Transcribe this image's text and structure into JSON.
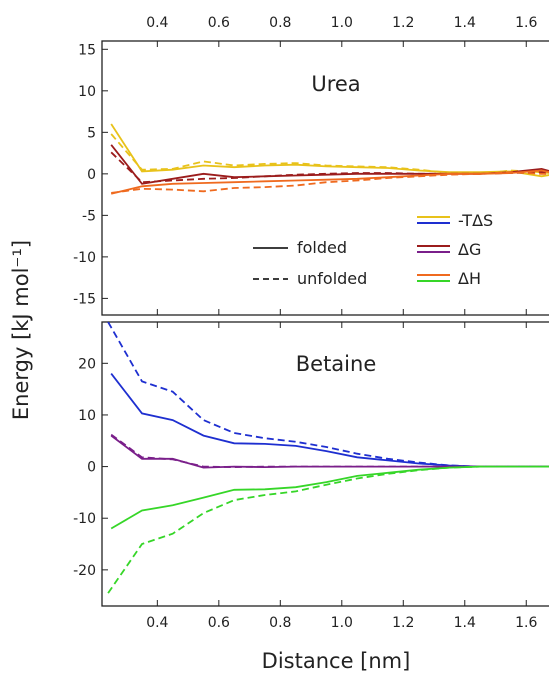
{
  "figure": {
    "xlabel": "Distance [nm]",
    "ylabel": "Energy [kJ mol⁻¹]"
  },
  "colors": {
    "neg_T_delta_S": "#e8c21a",
    "delta_G_urea": "#9b1c1c",
    "delta_H_urea": "#ef6a1f",
    "neg_T_delta_S_betaine": "#1e2fd0",
    "delta_G_betaine": "#7a1f8a",
    "delta_H_betaine": "#36d628"
  },
  "legend": {
    "style_entries": [
      {
        "label": "folded",
        "dash": "solid"
      },
      {
        "label": "unfolded",
        "dash": "dashed"
      }
    ],
    "color_entries": [
      {
        "label": "-TΔS",
        "color": "#e8c21a",
        "line2": "#1e2fd0"
      },
      {
        "label": "ΔG",
        "color": "#9b1c1c",
        "line2": "#7a1f8a"
      },
      {
        "label": "ΔH",
        "color": "#ef6a1f",
        "line2": "#36d628"
      }
    ]
  },
  "chart_data": [
    {
      "type": "line",
      "panel_label": "Urea",
      "xlim": [
        0.22,
        1.7
      ],
      "ylim": [
        -17,
        16
      ],
      "xticks": [
        0.4,
        0.6,
        0.8,
        1.0,
        1.2,
        1.4,
        1.6
      ],
      "xtick_labels": [
        "0.4",
        "0.6",
        "0.8",
        "1.0",
        "1.2",
        "1.4",
        "1.6"
      ],
      "yticks": [
        15,
        10,
        5,
        0,
        -5,
        -10,
        -15
      ],
      "ytick_labels": [
        "15",
        "10",
        "5",
        "0",
        "-5",
        "-10",
        "-15"
      ],
      "series": [
        {
          "name": "-TΔS",
          "state": "folded",
          "dash": "solid",
          "color": "#e8c21a",
          "x": [
            0.25,
            0.35,
            0.45,
            0.55,
            0.65,
            0.75,
            0.85,
            0.95,
            1.05,
            1.15,
            1.25,
            1.35,
            1.45,
            1.55,
            1.65,
            1.7
          ],
          "y": [
            6.0,
            0.3,
            0.5,
            1.0,
            0.8,
            1.0,
            1.1,
            0.9,
            0.8,
            0.7,
            0.4,
            0.2,
            0.2,
            0.3,
            -0.3,
            0.0
          ]
        },
        {
          "name": "-TΔS",
          "state": "unfolded",
          "dash": "dashed",
          "color": "#e8c21a",
          "x": [
            0.25,
            0.35,
            0.45,
            0.55,
            0.65,
            0.75,
            0.85,
            0.95,
            1.05,
            1.15,
            1.25,
            1.35,
            1.45,
            1.55,
            1.65,
            1.7
          ],
          "y": [
            4.8,
            0.5,
            0.6,
            1.5,
            1.0,
            1.2,
            1.3,
            1.0,
            0.9,
            0.8,
            0.5,
            0.1,
            0.0,
            0.4,
            0.2,
            0.0
          ]
        },
        {
          "name": "ΔG",
          "state": "folded",
          "dash": "solid",
          "color": "#9b1c1c",
          "x": [
            0.25,
            0.35,
            0.45,
            0.55,
            0.65,
            0.75,
            0.85,
            0.95,
            1.05,
            1.15,
            1.25,
            1.35,
            1.45,
            1.55,
            1.65,
            1.7
          ],
          "y": [
            3.5,
            -1.2,
            -0.6,
            0.0,
            -0.4,
            -0.3,
            -0.2,
            -0.1,
            0.0,
            0.0,
            0.0,
            0.0,
            0.0,
            0.2,
            0.6,
            0.1
          ]
        },
        {
          "name": "ΔG",
          "state": "unfolded",
          "dash": "dashed",
          "color": "#9b1c1c",
          "x": [
            0.25,
            0.35,
            0.45,
            0.55,
            0.65,
            0.75,
            0.85,
            0.95,
            1.05,
            1.15,
            1.25,
            1.35,
            1.45,
            1.55,
            1.65,
            1.7
          ],
          "y": [
            2.6,
            -1.0,
            -0.8,
            -0.6,
            -0.5,
            -0.3,
            -0.1,
            0.0,
            0.1,
            0.1,
            0.0,
            0.0,
            0.0,
            0.1,
            0.2,
            0.0
          ]
        },
        {
          "name": "ΔH",
          "state": "folded",
          "dash": "solid",
          "color": "#ef6a1f",
          "x": [
            0.25,
            0.35,
            0.45,
            0.55,
            0.65,
            0.75,
            0.85,
            0.95,
            1.05,
            1.15,
            1.25,
            1.35,
            1.45,
            1.55,
            1.65,
            1.7
          ],
          "y": [
            -2.4,
            -1.5,
            -1.2,
            -1.1,
            -1.0,
            -0.9,
            -0.8,
            -0.7,
            -0.6,
            -0.4,
            -0.2,
            0.0,
            0.0,
            0.1,
            0.4,
            0.0
          ]
        },
        {
          "name": "ΔH",
          "state": "unfolded",
          "dash": "dashed",
          "color": "#ef6a1f",
          "x": [
            0.25,
            0.35,
            0.45,
            0.55,
            0.65,
            0.75,
            0.85,
            0.95,
            1.05,
            1.15,
            1.25,
            1.35,
            1.45,
            1.55,
            1.65,
            1.7
          ],
          "y": [
            -2.3,
            -1.8,
            -1.9,
            -2.1,
            -1.7,
            -1.6,
            -1.4,
            -1.0,
            -0.8,
            -0.5,
            -0.3,
            -0.1,
            0.0,
            0.2,
            0.0,
            0.0
          ]
        }
      ]
    },
    {
      "type": "line",
      "panel_label": "Betaine",
      "xlim": [
        0.22,
        1.7
      ],
      "ylim": [
        -27,
        28
      ],
      "xticks": [
        0.4,
        0.6,
        0.8,
        1.0,
        1.2,
        1.4,
        1.6
      ],
      "xtick_labels": [
        "0.4",
        "0.6",
        "0.8",
        "1.0",
        "1.2",
        "1.4",
        "1.6"
      ],
      "yticks": [
        20,
        10,
        0,
        -10,
        -20
      ],
      "ytick_labels": [
        "20",
        "10",
        "0",
        "-10",
        "-20"
      ],
      "series": [
        {
          "name": "-TΔS",
          "state": "folded",
          "dash": "solid",
          "color": "#1e2fd0",
          "x": [
            0.25,
            0.35,
            0.45,
            0.55,
            0.65,
            0.75,
            0.85,
            0.95,
            1.05,
            1.15,
            1.25,
            1.35,
            1.45,
            1.55,
            1.65,
            1.7
          ],
          "y": [
            18.0,
            10.3,
            9.0,
            6.0,
            4.5,
            4.4,
            4.0,
            3.0,
            1.8,
            1.2,
            0.6,
            0.2,
            0.0,
            0.0,
            0.0,
            0.0
          ]
        },
        {
          "name": "-TΔS",
          "state": "unfolded",
          "dash": "dashed",
          "color": "#1e2fd0",
          "x": [
            0.24,
            0.35,
            0.45,
            0.55,
            0.65,
            0.75,
            0.85,
            0.95,
            1.05,
            1.15,
            1.25,
            1.35,
            1.45,
            1.55,
            1.65,
            1.7
          ],
          "y": [
            28.0,
            16.5,
            14.5,
            9.0,
            6.5,
            5.5,
            4.8,
            3.8,
            2.5,
            1.5,
            0.8,
            0.2,
            0.0,
            0.0,
            0.0,
            0.0
          ]
        },
        {
          "name": "ΔG",
          "state": "folded",
          "dash": "solid",
          "color": "#7a1f8a",
          "x": [
            0.25,
            0.35,
            0.45,
            0.55,
            0.65,
            0.75,
            0.85,
            0.95,
            1.05,
            1.15,
            1.25,
            1.35,
            1.45,
            1.55,
            1.65,
            1.7
          ],
          "y": [
            6.0,
            1.5,
            1.5,
            -0.2,
            0.0,
            -0.1,
            0.0,
            0.0,
            0.0,
            0.0,
            0.0,
            0.0,
            0.0,
            0.0,
            0.0,
            0.0
          ]
        },
        {
          "name": "ΔG",
          "state": "unfolded",
          "dash": "dashed",
          "color": "#7a1f8a",
          "x": [
            0.25,
            0.35,
            0.45,
            0.55,
            0.65,
            0.75,
            0.85,
            0.95,
            1.05,
            1.15,
            1.25,
            1.35,
            1.45,
            1.55,
            1.65,
            1.7
          ],
          "y": [
            6.2,
            1.8,
            1.4,
            0.0,
            -0.1,
            0.0,
            0.0,
            0.0,
            0.0,
            0.0,
            0.0,
            0.0,
            0.0,
            0.0,
            0.0,
            0.0
          ]
        },
        {
          "name": "ΔH",
          "state": "folded",
          "dash": "solid",
          "color": "#36d628",
          "x": [
            0.25,
            0.35,
            0.45,
            0.55,
            0.65,
            0.75,
            0.85,
            0.95,
            1.05,
            1.15,
            1.25,
            1.35,
            1.45,
            1.55,
            1.65,
            1.7
          ],
          "y": [
            -12.0,
            -8.5,
            -7.5,
            -6.0,
            -4.5,
            -4.4,
            -4.0,
            -3.0,
            -1.8,
            -1.2,
            -0.6,
            -0.2,
            0.0,
            0.0,
            0.0,
            0.0
          ]
        },
        {
          "name": "ΔH",
          "state": "unfolded",
          "dash": "dashed",
          "color": "#36d628",
          "x": [
            0.24,
            0.35,
            0.45,
            0.55,
            0.65,
            0.75,
            0.85,
            0.95,
            1.05,
            1.15,
            1.25,
            1.35,
            1.45,
            1.55,
            1.65,
            1.7
          ],
          "y": [
            -24.5,
            -15.0,
            -13.0,
            -9.0,
            -6.5,
            -5.5,
            -4.8,
            -3.5,
            -2.3,
            -1.4,
            -0.7,
            -0.2,
            0.0,
            0.0,
            0.0,
            0.0
          ]
        }
      ]
    }
  ]
}
